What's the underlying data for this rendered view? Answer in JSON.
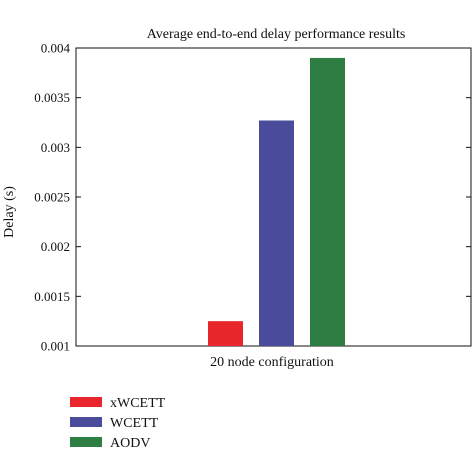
{
  "chart_data": {
    "type": "bar",
    "title": "Average end-to-end delay performance results",
    "xlabel": "20 node configuration",
    "ylabel": "Delay (s)",
    "ylim": [
      0.001,
      0.004
    ],
    "yticks": [
      "0.001",
      "0.0015",
      "0.002",
      "0.0025",
      "0.003",
      "0.0035",
      "0.004"
    ],
    "grid": false,
    "legend_position": "bottom-left",
    "categories": [
      "20 node configuration"
    ],
    "series": [
      {
        "name": "xWCETT",
        "values": [
          0.00125
        ],
        "color": "#e8262b"
      },
      {
        "name": "WCETT",
        "values": [
          0.00327
        ],
        "color": "#4b4b9c"
      },
      {
        "name": "AODV",
        "values": [
          0.0039
        ],
        "color": "#2e7d43"
      }
    ]
  }
}
